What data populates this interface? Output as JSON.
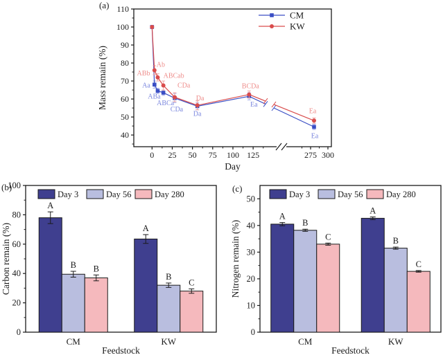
{
  "panels": {
    "a_label": "(a)",
    "b_label": "(b)",
    "c_label": "(c)"
  },
  "chart_data": [
    {
      "type": "line",
      "panel": "a",
      "xlabel": "Day",
      "ylabel": "Mass remain (%)",
      "x_days": [
        0,
        3,
        7,
        14,
        28,
        56,
        120,
        280
      ],
      "xticks": [
        0,
        25,
        50,
        75,
        100,
        125,
        275,
        300
      ],
      "yticks": [
        40,
        50,
        60,
        70,
        80,
        90,
        100,
        110
      ],
      "ylim": [
        33.5,
        110
      ],
      "axis_break_between": [
        140,
        265
      ],
      "grid": false,
      "legend_position": "top-right",
      "series": [
        {
          "name": "CM",
          "marker": "square",
          "color": "#3a4ec4",
          "light_color": "#a9b1ec",
          "label_color": "#7b87de",
          "values": [
            100,
            68,
            64.5,
            63.5,
            60.5,
            56,
            61.5,
            44.5
          ],
          "errors": [
            0,
            2,
            1.5,
            1.5,
            2.5,
            2,
            2,
            1.5
          ],
          "point_labels": [
            "",
            "Aa",
            "ABa",
            "ABCa",
            "CDa",
            "Da",
            "Ea",
            "Ea"
          ],
          "label_offsets": [
            [
              0,
              0,
              "middle"
            ],
            [
              -6,
              4,
              "end"
            ],
            [
              -5,
              11,
              "middle"
            ],
            [
              3,
              18,
              "middle"
            ],
            [
              3,
              19,
              "middle"
            ],
            [
              0,
              14,
              "middle"
            ],
            [
              7,
              15,
              "middle"
            ],
            [
              1,
              16,
              "middle"
            ]
          ]
        },
        {
          "name": "KW",
          "marker": "circle",
          "color": "#d94c4c",
          "light_color": "#f2a6a4",
          "label_color": "#ee8d8b",
          "values": [
            100,
            76,
            72,
            67.5,
            61,
            56.5,
            62.5,
            48
          ],
          "errors": [
            0,
            2.5,
            2,
            2.5,
            2.5,
            2.5,
            2,
            1.5
          ],
          "point_labels": [
            "",
            "Ab",
            "ABb",
            "ABCab",
            "CDa",
            "Da",
            "BCDa",
            "Ea"
          ],
          "label_offsets": [
            [
              0,
              0,
              "middle"
            ],
            [
              3,
              -5,
              "start"
            ],
            [
              -11,
              -3,
              "end"
            ],
            [
              0,
              -11,
              "start"
            ],
            [
              4,
              -14,
              "start"
            ],
            [
              4,
              -7,
              "middle"
            ],
            [
              2,
              -9,
              "middle"
            ],
            [
              -2,
              -11,
              "middle"
            ]
          ]
        }
      ]
    },
    {
      "type": "bar",
      "panel": "b",
      "xlabel": "Feedstock",
      "ylabel": "Carbon remain (%)",
      "categories": [
        "CM",
        "KW"
      ],
      "yticks": [
        0,
        20,
        40,
        60,
        80,
        100
      ],
      "ylim": [
        0,
        100
      ],
      "grid": false,
      "legend_position": "top",
      "series": [
        {
          "name": "Day 3",
          "color": "#3f3f8f",
          "values": [
            78,
            63.5
          ],
          "errors": [
            4,
            3
          ],
          "letters": [
            "A",
            "A"
          ]
        },
        {
          "name": "Day 56",
          "color": "#b9bedf",
          "values": [
            39.5,
            32
          ],
          "errors": [
            2,
            1.5
          ],
          "letters": [
            "B",
            "B"
          ]
        },
        {
          "name": "Day 280",
          "color": "#f5b9bd",
          "values": [
            37,
            28
          ],
          "errors": [
            2,
            1.5
          ],
          "letters": [
            "B",
            "C"
          ]
        }
      ]
    },
    {
      "type": "bar",
      "panel": "c",
      "xlabel": "Feedstock",
      "ylabel": "Nitrogen remain (%)",
      "categories": [
        "CM",
        "KW"
      ],
      "yticks": [
        0,
        10,
        20,
        30,
        40,
        50
      ],
      "ylim": [
        0,
        55
      ],
      "grid": false,
      "legend_position": "top",
      "series": [
        {
          "name": "Day 3",
          "color": "#3f3f8f",
          "values": [
            40.5,
            42.7
          ],
          "errors": [
            0.6,
            0.5
          ],
          "letters": [
            "A",
            "A"
          ]
        },
        {
          "name": "Day 56",
          "color": "#b9bedf",
          "values": [
            38.2,
            31.5
          ],
          "errors": [
            0.4,
            0.4
          ],
          "letters": [
            "B",
            "B"
          ]
        },
        {
          "name": "Day 280",
          "color": "#f5b9bd",
          "values": [
            33,
            22.8
          ],
          "errors": [
            0.4,
            0.3
          ],
          "letters": [
            "C",
            "C"
          ]
        }
      ]
    }
  ]
}
